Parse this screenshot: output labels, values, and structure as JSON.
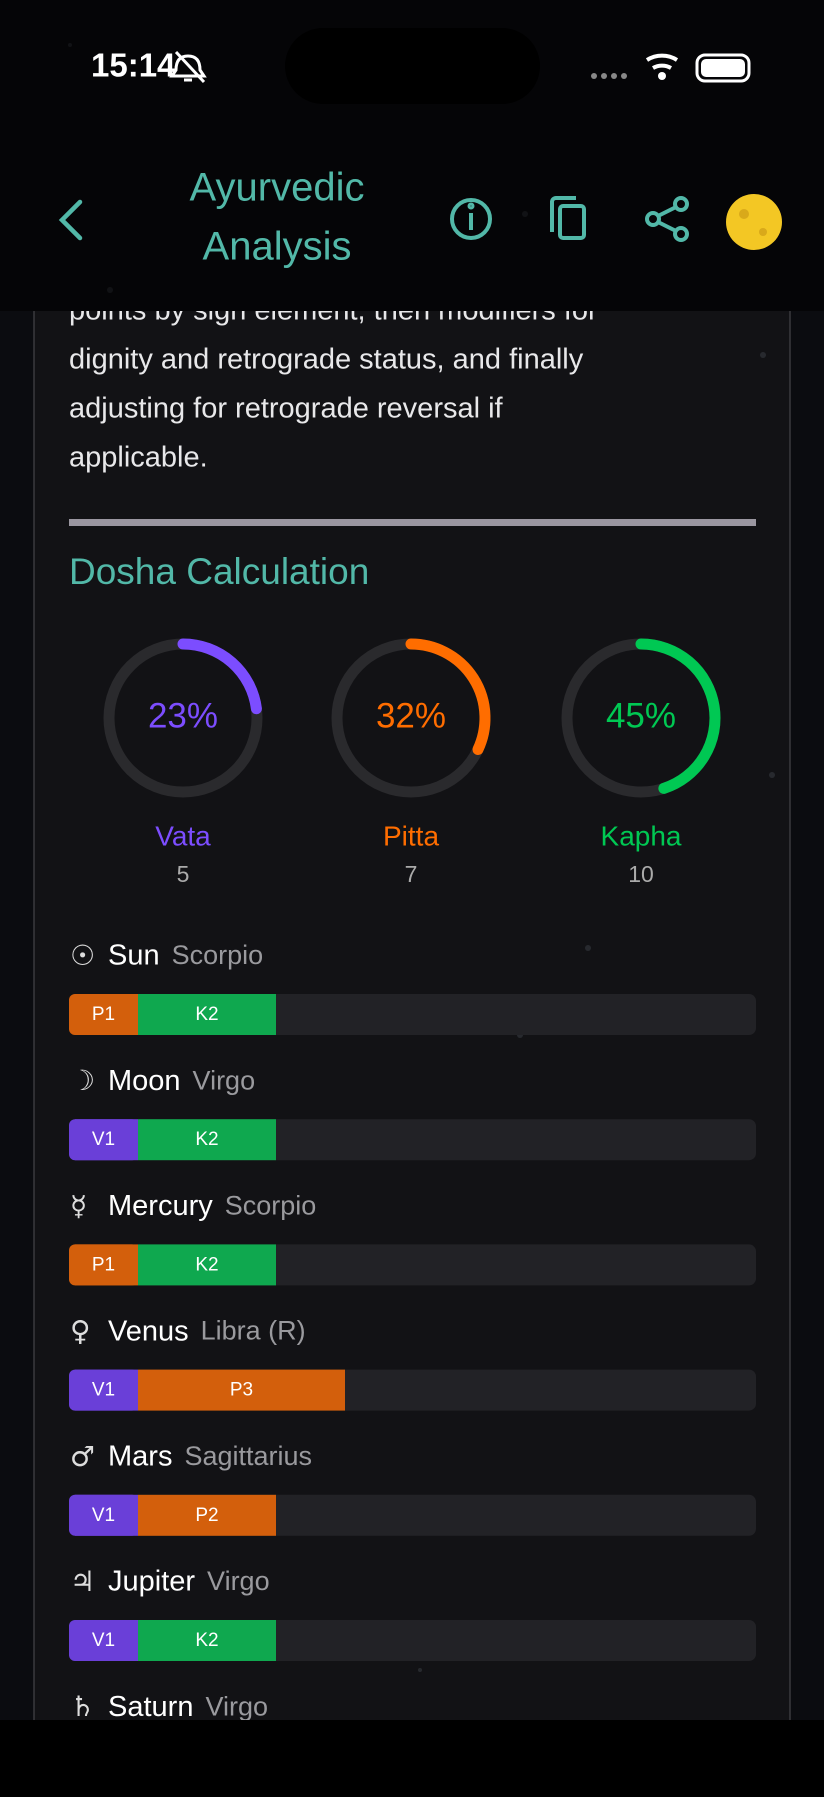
{
  "status_bar": {
    "time": "15:14"
  },
  "header": {
    "title_lines": [
      "Ayurvedic",
      "Analysis"
    ]
  },
  "content": {
    "paragraph_lines": [
      "points by sign element, then modifiers for",
      "dignity and retrograde status, and finally",
      "adjusting for retrograde reversal if",
      "applicable."
    ],
    "section_title": "Dosha Calculation",
    "doshas": [
      {
        "name": "Vata",
        "percent": {
          "value": 23,
          "label": "23%"
        },
        "count": 5,
        "color": "#7c4dff"
      },
      {
        "name": "Pitta",
        "percent": {
          "value": 32,
          "label": "32%"
        },
        "count": 7,
        "color": "#ff6d00"
      },
      {
        "name": "Kapha",
        "percent": {
          "value": 45,
          "label": "45%"
        },
        "count": 10,
        "color": "#00c853"
      }
    ],
    "planets": [
      {
        "symbol": "☉",
        "name": "Sun",
        "sign": "Scorpio",
        "segments": [
          {
            "label": "P1",
            "value": 1,
            "color": "#d35f0c"
          },
          {
            "label": "K2",
            "value": 2,
            "color": "#0fa84f"
          }
        ]
      },
      {
        "symbol": "☽",
        "name": "Moon",
        "sign": "Virgo",
        "segments": [
          {
            "label": "V1",
            "value": 1,
            "color": "#6a3fd8"
          },
          {
            "label": "K2",
            "value": 2,
            "color": "#0fa84f"
          }
        ]
      },
      {
        "symbol": "☿",
        "name": "Mercury",
        "sign": "Scorpio",
        "segments": [
          {
            "label": "P1",
            "value": 1,
            "color": "#d35f0c"
          },
          {
            "label": "K2",
            "value": 2,
            "color": "#0fa84f"
          }
        ]
      },
      {
        "symbol": "♀",
        "name": "Venus",
        "sign": "Libra (R)",
        "segments": [
          {
            "label": "V1",
            "value": 1,
            "color": "#6a3fd8"
          },
          {
            "label": "P3",
            "value": 3,
            "color": "#d35f0c"
          }
        ]
      },
      {
        "symbol": "♂",
        "name": "Mars",
        "sign": "Sagittarius",
        "segments": [
          {
            "label": "V1",
            "value": 1,
            "color": "#6a3fd8"
          },
          {
            "label": "P2",
            "value": 2,
            "color": "#d35f0c"
          }
        ]
      },
      {
        "symbol": "♃",
        "name": "Jupiter",
        "sign": "Virgo",
        "segments": [
          {
            "label": "V1",
            "value": 1,
            "color": "#6a3fd8"
          },
          {
            "label": "K2",
            "value": 2,
            "color": "#0fa84f"
          }
        ]
      },
      {
        "symbol": "♄",
        "name": "Saturn",
        "sign": "Virgo",
        "segments": []
      }
    ]
  }
}
